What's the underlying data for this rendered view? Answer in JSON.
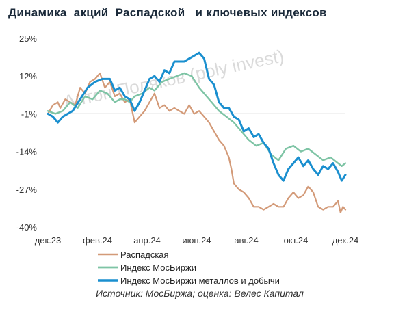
{
  "title": "Динамика  акций  Распадской   и ключевых индексов",
  "watermark": "Антон Поляков (poly invest)",
  "source": "Источник: МосБиржа; оценка: Велес Капитал",
  "colors": {
    "Распадская": "#d39a78",
    "Индекс МосБиржи": "#7ec4a5",
    "Индекс МосБиржи металлов и добычи": "#1a8fcf",
    "zero_line": "#9a9a9a"
  },
  "chart_data": {
    "type": "line",
    "title": "Динамика  акций  Распадской   и ключевых индексов",
    "ylim": [
      -40,
      25
    ],
    "y_ticks": [
      25,
      12,
      -1,
      -14,
      -27,
      -40
    ],
    "y_tick_labels": [
      "25%",
      "12%",
      "-1%",
      "-14%",
      "-27%",
      "-40%"
    ],
    "x_ticks": [
      0,
      2,
      4,
      6,
      8,
      10,
      12
    ],
    "x_tick_labels": [
      "дек.23",
      "фев.24",
      "апр.24",
      "июн.24",
      "авг.24",
      "окт.24",
      "дек.24"
    ],
    "xlim": [
      0,
      12
    ],
    "legend": "bottom",
    "grid": false,
    "series": [
      {
        "name": "Распадская",
        "points": [
          [
            0,
            -1
          ],
          [
            0.2,
            2
          ],
          [
            0.4,
            3
          ],
          [
            0.5,
            1
          ],
          [
            0.7,
            4
          ],
          [
            0.9,
            3
          ],
          [
            1.1,
            2
          ],
          [
            1.3,
            8
          ],
          [
            1.5,
            6
          ],
          [
            1.7,
            10
          ],
          [
            1.9,
            11
          ],
          [
            2.1,
            13
          ],
          [
            2.3,
            8
          ],
          [
            2.5,
            10
          ],
          [
            2.7,
            5
          ],
          [
            2.9,
            6
          ],
          [
            3.1,
            3
          ],
          [
            3.3,
            4
          ],
          [
            3.5,
            -4
          ],
          [
            3.7,
            -2
          ],
          [
            3.9,
            0
          ],
          [
            4.1,
            3
          ],
          [
            4.3,
            6
          ],
          [
            4.5,
            1
          ],
          [
            4.7,
            2
          ],
          [
            4.9,
            0
          ],
          [
            5.1,
            1
          ],
          [
            5.3,
            0
          ],
          [
            5.5,
            -1
          ],
          [
            5.7,
            2
          ],
          [
            5.9,
            -1
          ],
          [
            6.1,
            0
          ],
          [
            6.3,
            -2
          ],
          [
            6.5,
            -4
          ],
          [
            6.7,
            -7
          ],
          [
            6.9,
            -10
          ],
          [
            7.1,
            -12
          ],
          [
            7.3,
            -16
          ],
          [
            7.4,
            -20
          ],
          [
            7.5,
            -25
          ],
          [
            7.7,
            -27
          ],
          [
            7.9,
            -28
          ],
          [
            8.1,
            -30
          ],
          [
            8.3,
            -33
          ],
          [
            8.5,
            -33
          ],
          [
            8.7,
            -34
          ],
          [
            8.9,
            -33
          ],
          [
            9.1,
            -32
          ],
          [
            9.3,
            -33
          ],
          [
            9.5,
            -33
          ],
          [
            9.7,
            -30
          ],
          [
            9.9,
            -28
          ],
          [
            10.1,
            -30
          ],
          [
            10.3,
            -29
          ],
          [
            10.5,
            -26
          ],
          [
            10.7,
            -28
          ],
          [
            10.9,
            -33
          ],
          [
            11.1,
            -34
          ],
          [
            11.3,
            -33
          ],
          [
            11.5,
            -33
          ],
          [
            11.7,
            -31
          ],
          [
            11.8,
            -35
          ],
          [
            11.9,
            -33
          ],
          [
            12,
            -34
          ]
        ]
      },
      {
        "name": "Индекс МосБиржи",
        "points": [
          [
            0,
            0
          ],
          [
            0.3,
            -1
          ],
          [
            0.6,
            0
          ],
          [
            0.9,
            3
          ],
          [
            1.2,
            1
          ],
          [
            1.5,
            5
          ],
          [
            1.8,
            4
          ],
          [
            2.1,
            7
          ],
          [
            2.4,
            6
          ],
          [
            2.7,
            3
          ],
          [
            2.9,
            4
          ],
          [
            3.1,
            4
          ],
          [
            3.3,
            3
          ],
          [
            3.5,
            5
          ],
          [
            3.8,
            6
          ],
          [
            4.1,
            8
          ],
          [
            4.3,
            7
          ],
          [
            4.6,
            10
          ],
          [
            4.9,
            11
          ],
          [
            5.2,
            12
          ],
          [
            5.5,
            13
          ],
          [
            5.8,
            12
          ],
          [
            6.1,
            8
          ],
          [
            6.3,
            6
          ],
          [
            6.6,
            3
          ],
          [
            6.9,
            0
          ],
          [
            7.2,
            -2
          ],
          [
            7.5,
            -4
          ],
          [
            7.8,
            -7
          ],
          [
            8.1,
            -10
          ],
          [
            8.4,
            -12
          ],
          [
            8.7,
            -11
          ],
          [
            9,
            -15
          ],
          [
            9.3,
            -17
          ],
          [
            9.6,
            -13
          ],
          [
            9.9,
            -12
          ],
          [
            10.2,
            -14
          ],
          [
            10.5,
            -13
          ],
          [
            10.8,
            -15
          ],
          [
            11.1,
            -17
          ],
          [
            11.4,
            -16
          ],
          [
            11.7,
            -18
          ],
          [
            11.85,
            -19
          ],
          [
            12,
            -18
          ]
        ]
      },
      {
        "name": "Индекс МосБиржи металлов и добычи",
        "points": [
          [
            0,
            -1
          ],
          [
            0.2,
            -2
          ],
          [
            0.4,
            -4
          ],
          [
            0.6,
            -2
          ],
          [
            0.8,
            -1
          ],
          [
            1.0,
            0
          ],
          [
            1.3,
            4
          ],
          [
            1.6,
            8
          ],
          [
            1.9,
            10
          ],
          [
            2.2,
            11
          ],
          [
            2.5,
            11
          ],
          [
            2.7,
            7
          ],
          [
            2.9,
            8
          ],
          [
            3.1,
            5
          ],
          [
            3.3,
            4
          ],
          [
            3.5,
            0
          ],
          [
            3.7,
            3
          ],
          [
            3.9,
            7
          ],
          [
            4.1,
            11
          ],
          [
            4.3,
            12
          ],
          [
            4.5,
            10
          ],
          [
            4.7,
            14
          ],
          [
            4.9,
            13
          ],
          [
            5.1,
            17
          ],
          [
            5.3,
            17
          ],
          [
            5.5,
            17
          ],
          [
            5.7,
            18
          ],
          [
            5.9,
            19
          ],
          [
            6.1,
            20
          ],
          [
            6.3,
            18
          ],
          [
            6.5,
            11
          ],
          [
            6.7,
            9
          ],
          [
            6.9,
            3
          ],
          [
            7.1,
            1
          ],
          [
            7.3,
            1
          ],
          [
            7.5,
            -2
          ],
          [
            7.7,
            -3
          ],
          [
            7.9,
            -7
          ],
          [
            8.1,
            -6
          ],
          [
            8.3,
            -9
          ],
          [
            8.5,
            -8
          ],
          [
            8.7,
            -11
          ],
          [
            8.9,
            -13
          ],
          [
            9.1,
            -18
          ],
          [
            9.3,
            -22
          ],
          [
            9.5,
            -24
          ],
          [
            9.7,
            -20
          ],
          [
            9.9,
            -18
          ],
          [
            10.1,
            -16
          ],
          [
            10.3,
            -19
          ],
          [
            10.5,
            -17
          ],
          [
            10.7,
            -20
          ],
          [
            10.9,
            -22
          ],
          [
            11.1,
            -19
          ],
          [
            11.3,
            -20
          ],
          [
            11.5,
            -18
          ],
          [
            11.7,
            -21
          ],
          [
            11.85,
            -24
          ],
          [
            12,
            -22
          ]
        ]
      }
    ]
  }
}
